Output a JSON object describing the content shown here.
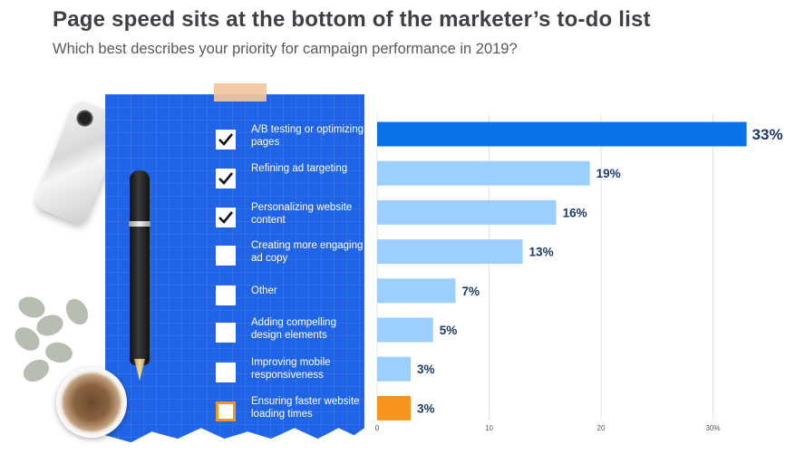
{
  "header": {
    "title": "Page speed sits at the bottom of the marketer’s to-do list",
    "subtitle": "Which best describes your priority for campaign performance in 2019?"
  },
  "checklist": [
    {
      "label": "A/B testing or optimizing  pages",
      "checked": true
    },
    {
      "label": "Refining ad targeting",
      "checked": true
    },
    {
      "label": "Personalizing website content",
      "checked": true
    },
    {
      "label": "Creating more engaging ad copy",
      "checked": false
    },
    {
      "label": "Other",
      "checked": false
    },
    {
      "label": "Adding compelling design elements",
      "checked": false
    },
    {
      "label": "Improving mobile responsiveness",
      "checked": false
    },
    {
      "label": "Ensuring faster website loading times",
      "checked": false,
      "highlight": true
    }
  ],
  "chart_data": {
    "type": "bar",
    "orientation": "horizontal",
    "categories": [
      "A/B testing or optimizing  pages",
      "Refining ad targeting",
      "Personalizing website content",
      "Creating more engaging ad copy",
      "Other",
      "Adding compelling design elements",
      "Improving mobile responsiveness",
      "Ensuring faster website loading times"
    ],
    "values": [
      33,
      19,
      16,
      13,
      7,
      5,
      3,
      3
    ],
    "value_labels": [
      "33%",
      "19%",
      "16%",
      "13%",
      "7%",
      "5%",
      "3%",
      "3%"
    ],
    "bar_colors": [
      "#0a73e8",
      "#9ccfff",
      "#9ccfff",
      "#9ccfff",
      "#9ccfff",
      "#9ccfff",
      "#9ccfff",
      "#f7941d"
    ],
    "xlim": [
      0,
      32
    ],
    "xticks": [
      0,
      10,
      20,
      30
    ],
    "xtick_labels": [
      "0",
      "10",
      "20",
      "30%"
    ],
    "grid": true
  }
}
